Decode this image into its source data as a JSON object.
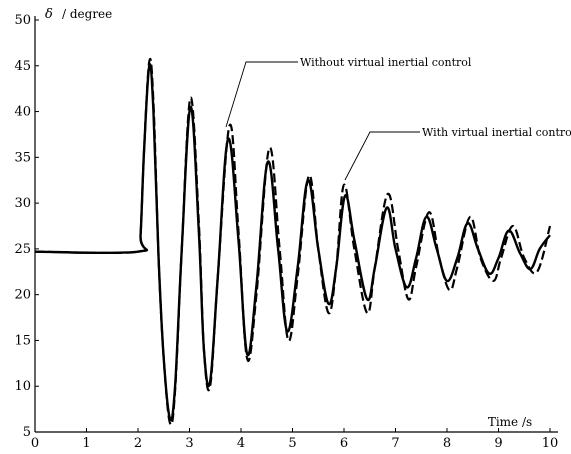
{
  "chart_data": {
    "type": "line",
    "xlabel": "Time /s",
    "ylabel": {
      "symbol": "δ",
      "unit": "/ degree"
    },
    "xlim": [
      0,
      10
    ],
    "ylim": [
      5,
      50
    ],
    "xticks": [
      0,
      1,
      2,
      3,
      4,
      5,
      6,
      7,
      8,
      9,
      10
    ],
    "yticks": [
      5,
      10,
      15,
      20,
      25,
      30,
      35,
      40,
      45,
      50
    ],
    "grid": false,
    "annotations": [
      {
        "text": "Without virtual inertial control",
        "target": "Without virtual inertial control"
      },
      {
        "text": "With virtual inertial control",
        "target": "With virtual inertial control"
      }
    ],
    "series": [
      {
        "name": "Without virtual inertial control",
        "style": "dashed",
        "color": "#000000",
        "x": [
          0,
          2.0,
          2.05,
          2.12,
          2.22,
          2.3,
          2.4,
          2.5,
          2.62,
          2.72,
          2.85,
          3.02,
          3.18,
          3.28,
          3.4,
          3.55,
          3.78,
          3.95,
          4.12,
          4.3,
          4.55,
          4.75,
          4.92,
          5.1,
          5.32,
          5.5,
          5.7,
          5.85,
          6.0,
          6.2,
          6.45,
          6.6,
          6.85,
          7.05,
          7.25,
          7.4,
          7.65,
          7.85,
          8.05,
          8.2,
          8.45,
          8.65,
          8.9,
          9.05,
          9.28,
          9.5,
          9.75,
          10.0
        ],
        "y": [
          24.7,
          24.7,
          26.5,
          36,
          45.5,
          41,
          24,
          13,
          6.0,
          9.5,
          25,
          41.5,
          28,
          14,
          10.0,
          22,
          38.5,
          27,
          13.0,
          20,
          36.0,
          25,
          15.0,
          22,
          33.0,
          25,
          18.0,
          23,
          32.0,
          25,
          18.0,
          23,
          31.0,
          25,
          19.5,
          23,
          29.0,
          24,
          20.5,
          23,
          28.5,
          24,
          21.5,
          24,
          27.5,
          24,
          22.5,
          27.5
        ]
      },
      {
        "name": "With virtual inertial control",
        "style": "solid",
        "color": "#000000",
        "x": [
          0,
          2.0,
          2.05,
          2.12,
          2.22,
          2.3,
          2.4,
          2.5,
          2.62,
          2.72,
          2.85,
          3.02,
          3.18,
          3.28,
          3.4,
          3.55,
          3.75,
          3.95,
          4.12,
          4.3,
          4.52,
          4.72,
          4.9,
          5.1,
          5.3,
          5.5,
          5.7,
          5.85,
          6.02,
          6.2,
          6.45,
          6.6,
          6.83,
          7.0,
          7.22,
          7.4,
          7.6,
          7.8,
          8.0,
          8.2,
          8.4,
          8.6,
          8.82,
          9.0,
          9.2,
          9.42,
          9.62,
          9.8,
          10.0
        ],
        "y": [
          24.7,
          24.7,
          26.5,
          36,
          45.0,
          40,
          24,
          13,
          6.5,
          10,
          25,
          40.5,
          27,
          14,
          10.5,
          22,
          37.0,
          26,
          13.5,
          21,
          34.5,
          25,
          16.0,
          23,
          32.5,
          25,
          19.0,
          23,
          30.8,
          26,
          19.5,
          23,
          29.5,
          25,
          20.8,
          24,
          28.5,
          25,
          21.5,
          24,
          27.8,
          25,
          22.3,
          24,
          27.0,
          24.5,
          22.8,
          25,
          26.5
        ]
      }
    ]
  }
}
